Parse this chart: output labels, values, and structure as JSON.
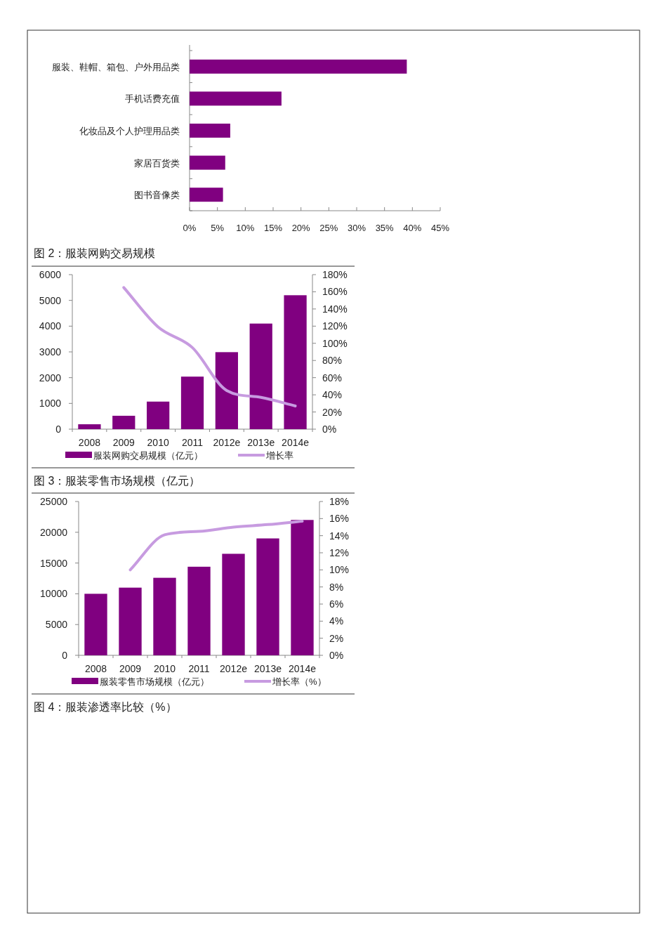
{
  "chart_data": [
    {
      "type": "bar",
      "orientation": "horizontal",
      "categories": [
        "服装、鞋帽、箱包、户外用品类",
        "手机话费充值",
        "化妆品及个人护理用品类",
        "家居百货类",
        "图书音像类"
      ],
      "values": [
        39,
        16.5,
        7.3,
        6.4,
        6
      ],
      "color": "#800080",
      "xlim": [
        0,
        45
      ],
      "xticks": [
        {
          "value": 0,
          "label": "0%"
        },
        {
          "value": 5,
          "label": "5%"
        },
        {
          "value": 10,
          "label": "10%"
        },
        {
          "value": 15,
          "label": "15%"
        },
        {
          "value": 20,
          "label": "20%"
        },
        {
          "value": 25,
          "label": "25%"
        },
        {
          "value": 30,
          "label": "30%"
        },
        {
          "value": 35,
          "label": "35%"
        },
        {
          "value": 40,
          "label": "40%"
        },
        {
          "value": 45,
          "label": "45%"
        }
      ]
    },
    {
      "type": "bar",
      "title": "图 2：服装网购交易规模",
      "categories": [
        "2008",
        "2009",
        "2010",
        "2011",
        "2012e",
        "2013e",
        "2014e"
      ],
      "series": [
        {
          "name": "服装网购交易规模（亿元）",
          "type": "bar",
          "color": "#800080",
          "values": [
            190,
            520,
            1070,
            2040,
            2990,
            4100,
            5200
          ]
        },
        {
          "name": "增长率",
          "type": "line",
          "axis": "y2",
          "color": "#c79be0",
          "values": [
            null,
            165,
            119,
            95,
            45,
            37,
            27
          ]
        }
      ],
      "ylim": [
        0,
        6000
      ],
      "yticks": [
        0,
        1000,
        2000,
        3000,
        4000,
        5000,
        6000
      ],
      "y2lim": [
        0,
        180
      ],
      "y2ticks": [
        {
          "value": 0,
          "label": "0%"
        },
        {
          "value": 20,
          "label": "20%"
        },
        {
          "value": 40,
          "label": "40%"
        },
        {
          "value": 60,
          "label": "60%"
        },
        {
          "value": 80,
          "label": "80%"
        },
        {
          "value": 100,
          "label": "100%"
        },
        {
          "value": 120,
          "label": "120%"
        },
        {
          "value": 140,
          "label": "140%"
        },
        {
          "value": 160,
          "label": "160%"
        },
        {
          "value": 180,
          "label": "180%"
        }
      ],
      "legend": "bottom"
    },
    {
      "type": "bar",
      "title": "图 3：服装零售市场规模（亿元）",
      "categories": [
        "2008",
        "2009",
        "2010",
        "2011",
        "2012e",
        "2013e",
        "2014e"
      ],
      "series": [
        {
          "name": "服装零售市场规模（亿元）",
          "type": "bar",
          "color": "#800080",
          "values": [
            10000,
            11000,
            12600,
            14400,
            16500,
            19000,
            22000
          ]
        },
        {
          "name": "增长率（%）",
          "type": "line",
          "axis": "y2",
          "color": "#c79be0",
          "values": [
            null,
            10,
            14.1,
            14.5,
            15,
            15.3,
            15.7
          ]
        }
      ],
      "ylim": [
        0,
        25000
      ],
      "yticks": [
        0,
        5000,
        10000,
        15000,
        20000,
        25000
      ],
      "y2lim": [
        0,
        18
      ],
      "y2ticks": [
        {
          "value": 0,
          "label": "0%"
        },
        {
          "value": 2,
          "label": "2%"
        },
        {
          "value": 4,
          "label": "4%"
        },
        {
          "value": 6,
          "label": "6%"
        },
        {
          "value": 8,
          "label": "8%"
        },
        {
          "value": 10,
          "label": "10%"
        },
        {
          "value": 12,
          "label": "12%"
        },
        {
          "value": 14,
          "label": "14%"
        },
        {
          "value": 16,
          "label": "16%"
        },
        {
          "value": 18,
          "label": "18%"
        }
      ],
      "legend": "bottom",
      "annotations": [
        "图 4：服装渗透率比较（%）"
      ]
    }
  ]
}
